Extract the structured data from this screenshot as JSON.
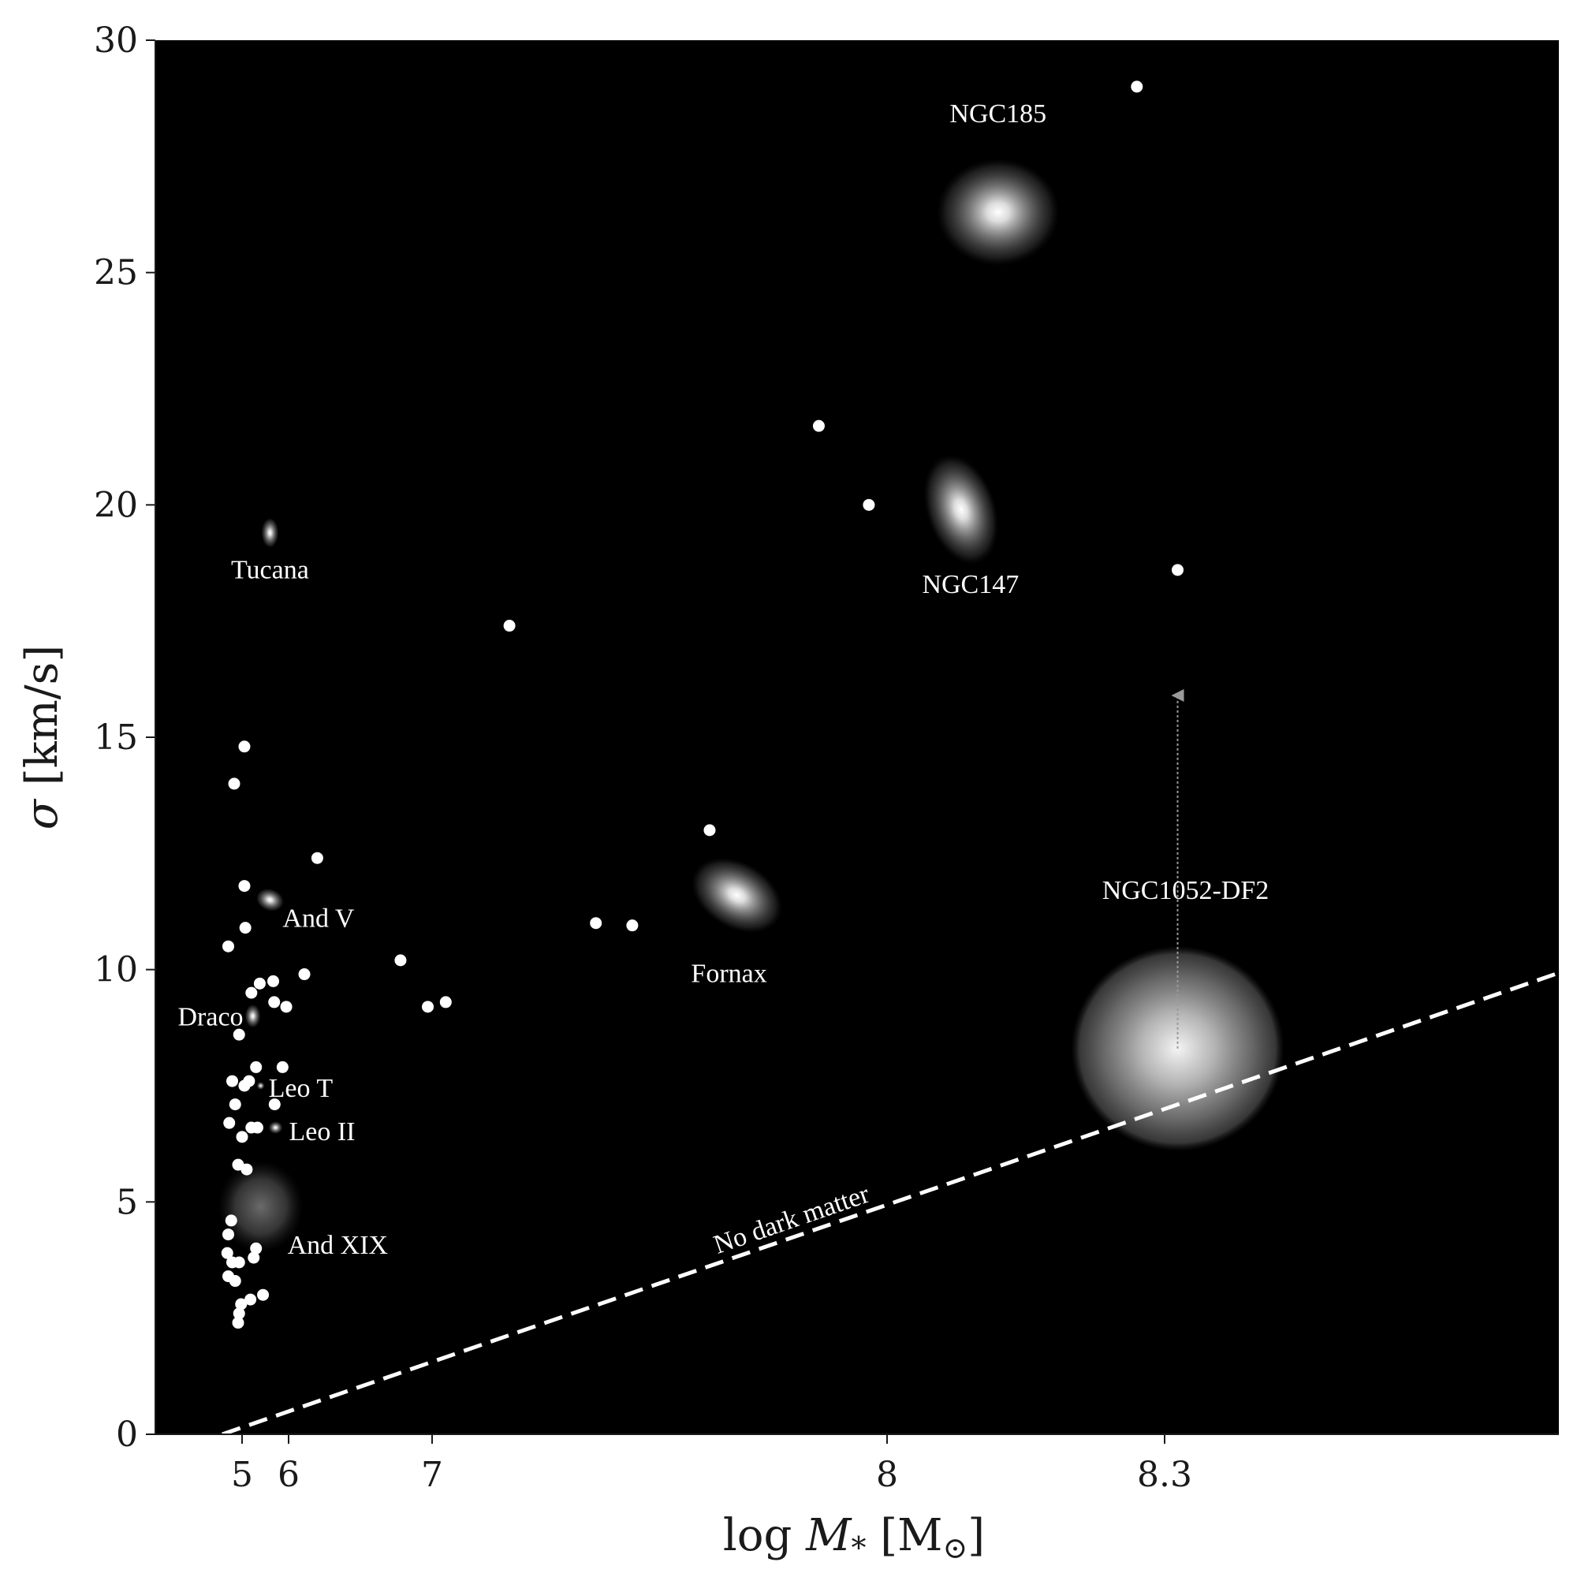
{
  "chart_data": {
    "type": "scatter",
    "title": "",
    "xlabel": "log M_* [M_⊙]",
    "ylabel": "σ [km/s]",
    "ylim": [
      0,
      30
    ],
    "x_scale": "irregular",
    "x_ticks": [
      {
        "label": "5",
        "value": 5
      },
      {
        "label": "6",
        "value": 6
      },
      {
        "label": "7",
        "value": 7
      },
      {
        "label": "8",
        "value": 8
      },
      {
        "label": "8.3",
        "value": 8.3
      }
    ],
    "y_ticks": [
      0,
      5,
      10,
      15,
      20,
      25,
      30
    ],
    "grid": false,
    "background": "#000000",
    "points": [
      [
        5.05,
        14.8
      ],
      [
        4.92,
        14.0
      ],
      [
        5.05,
        11.8
      ],
      [
        5.07,
        10.9
      ],
      [
        4.86,
        10.5
      ],
      [
        4.97,
        8.6
      ],
      [
        5.2,
        9.5
      ],
      [
        5.38,
        9.7
      ],
      [
        5.67,
        9.75
      ],
      [
        5.69,
        9.3
      ],
      [
        6.11,
        9.9
      ],
      [
        5.95,
        9.2
      ],
      [
        6.2,
        12.4
      ],
      [
        6.78,
        10.2
      ],
      [
        6.97,
        9.2
      ],
      [
        7.03,
        9.3
      ],
      [
        7.17,
        17.4
      ],
      [
        7.36,
        11.0
      ],
      [
        7.44,
        10.95
      ],
      [
        7.61,
        13.0
      ],
      [
        7.85,
        21.7
      ],
      [
        7.96,
        20.0
      ],
      [
        8.27,
        29.0
      ],
      [
        8.31,
        18.6
      ],
      [
        4.9,
        7.6
      ],
      [
        5.05,
        7.5
      ],
      [
        5.15,
        7.6
      ],
      [
        5.3,
        7.9
      ],
      [
        5.87,
        7.9
      ],
      [
        5.7,
        7.1
      ],
      [
        4.93,
        7.1
      ],
      [
        4.87,
        6.7
      ],
      [
        5.0,
        6.4
      ],
      [
        5.2,
        6.6
      ],
      [
        5.33,
        6.6
      ],
      [
        4.96,
        5.8
      ],
      [
        5.1,
        5.7
      ],
      [
        4.89,
        4.6
      ],
      [
        4.86,
        4.3
      ],
      [
        4.85,
        3.9
      ],
      [
        4.9,
        3.7
      ],
      [
        4.97,
        3.7
      ],
      [
        4.86,
        3.4
      ],
      [
        4.93,
        3.3
      ],
      [
        4.99,
        2.8
      ],
      [
        4.97,
        2.6
      ],
      [
        4.96,
        2.4
      ],
      [
        5.18,
        2.9
      ],
      [
        5.45,
        3.0
      ],
      [
        5.25,
        3.8
      ],
      [
        5.3,
        4.0
      ]
    ],
    "named_galaxies": [
      {
        "name": "NGC185",
        "x": 8.12,
        "y": 26.3
      },
      {
        "name": "NGC147",
        "x": 8.08,
        "y": 19.9
      },
      {
        "name": "Tucana",
        "x": 5.6,
        "y": 19.4
      },
      {
        "name": "Fornax",
        "x": 7.67,
        "y": 11.6
      },
      {
        "name": "And V",
        "x": 5.6,
        "y": 11.5
      },
      {
        "name": "Draco",
        "x": 5.23,
        "y": 9.0
      },
      {
        "name": "Leo T",
        "x": 5.4,
        "y": 7.5
      },
      {
        "name": "Leo II",
        "x": 5.72,
        "y": 6.6
      },
      {
        "name": "And XIX",
        "x": 5.4,
        "y": 4.9
      },
      {
        "name": "NGC1052-DF2",
        "x": 8.31,
        "y": 8.3
      }
    ],
    "reference_line": {
      "label": "No dark matter",
      "style": "dashed",
      "from": {
        "x": 4.8,
        "y": 0
      },
      "to": {
        "x": 8.6,
        "y": 9.9
      }
    },
    "upper_arrow": {
      "x": 8.31,
      "from": 8.3,
      "to": 15.9
    }
  }
}
